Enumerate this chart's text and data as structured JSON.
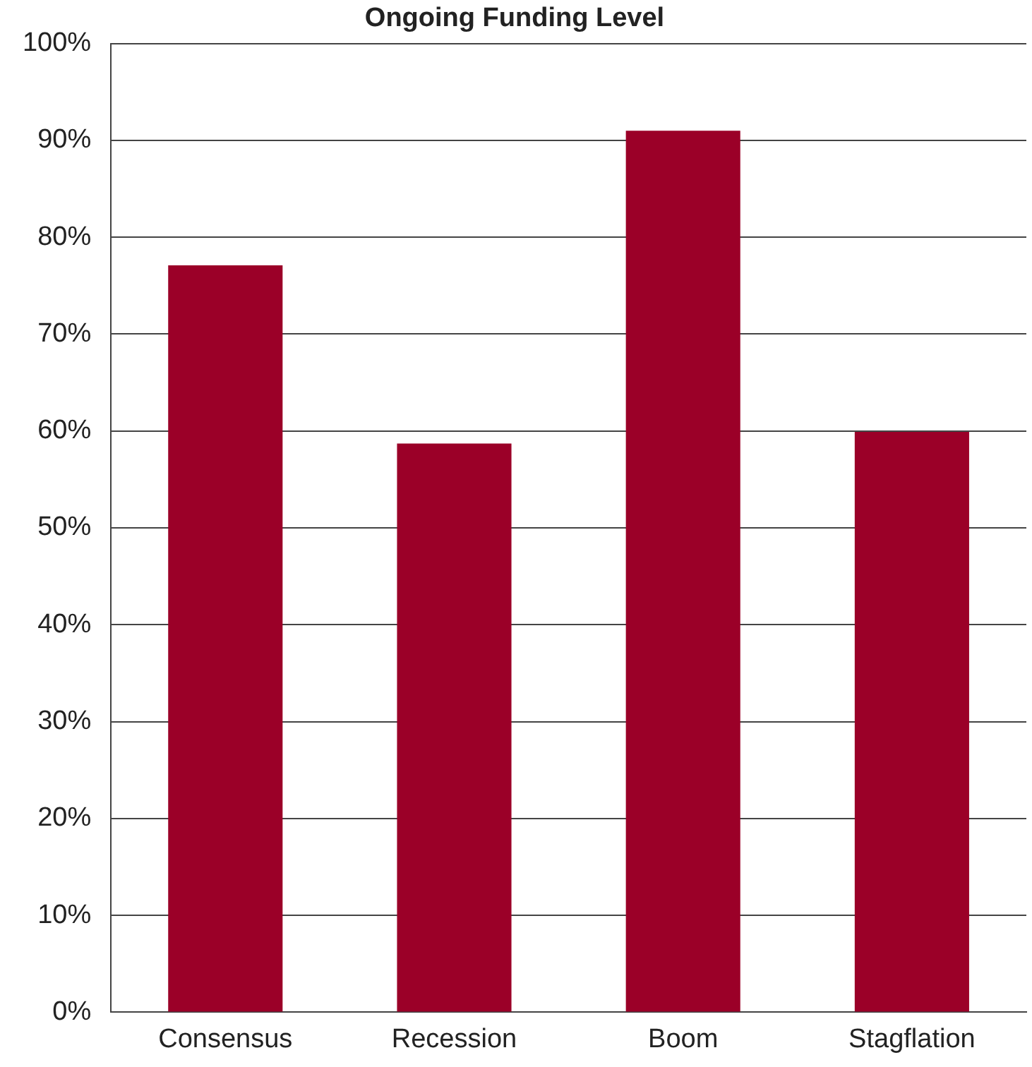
{
  "chart_data": {
    "type": "bar",
    "title": "Ongoing Funding Level",
    "categories": [
      "Consensus",
      "Recession",
      "Boom",
      "Stagflation"
    ],
    "values": [
      77.1,
      58.7,
      91.0,
      59.9
    ],
    "color": "#9b0028",
    "ylim": [
      0,
      100
    ],
    "yticks": [
      {
        "value": 0,
        "label": "0%"
      },
      {
        "value": 10,
        "label": "10%"
      },
      {
        "value": 20,
        "label": "20%"
      },
      {
        "value": 30,
        "label": "30%"
      },
      {
        "value": 40,
        "label": "40%"
      },
      {
        "value": 50,
        "label": "50%"
      },
      {
        "value": 60,
        "label": "60%"
      },
      {
        "value": 70,
        "label": "70%"
      },
      {
        "value": 80,
        "label": "80%"
      },
      {
        "value": 90,
        "label": "90%"
      },
      {
        "value": 100,
        "label": "100%"
      }
    ],
    "grid": "y"
  }
}
